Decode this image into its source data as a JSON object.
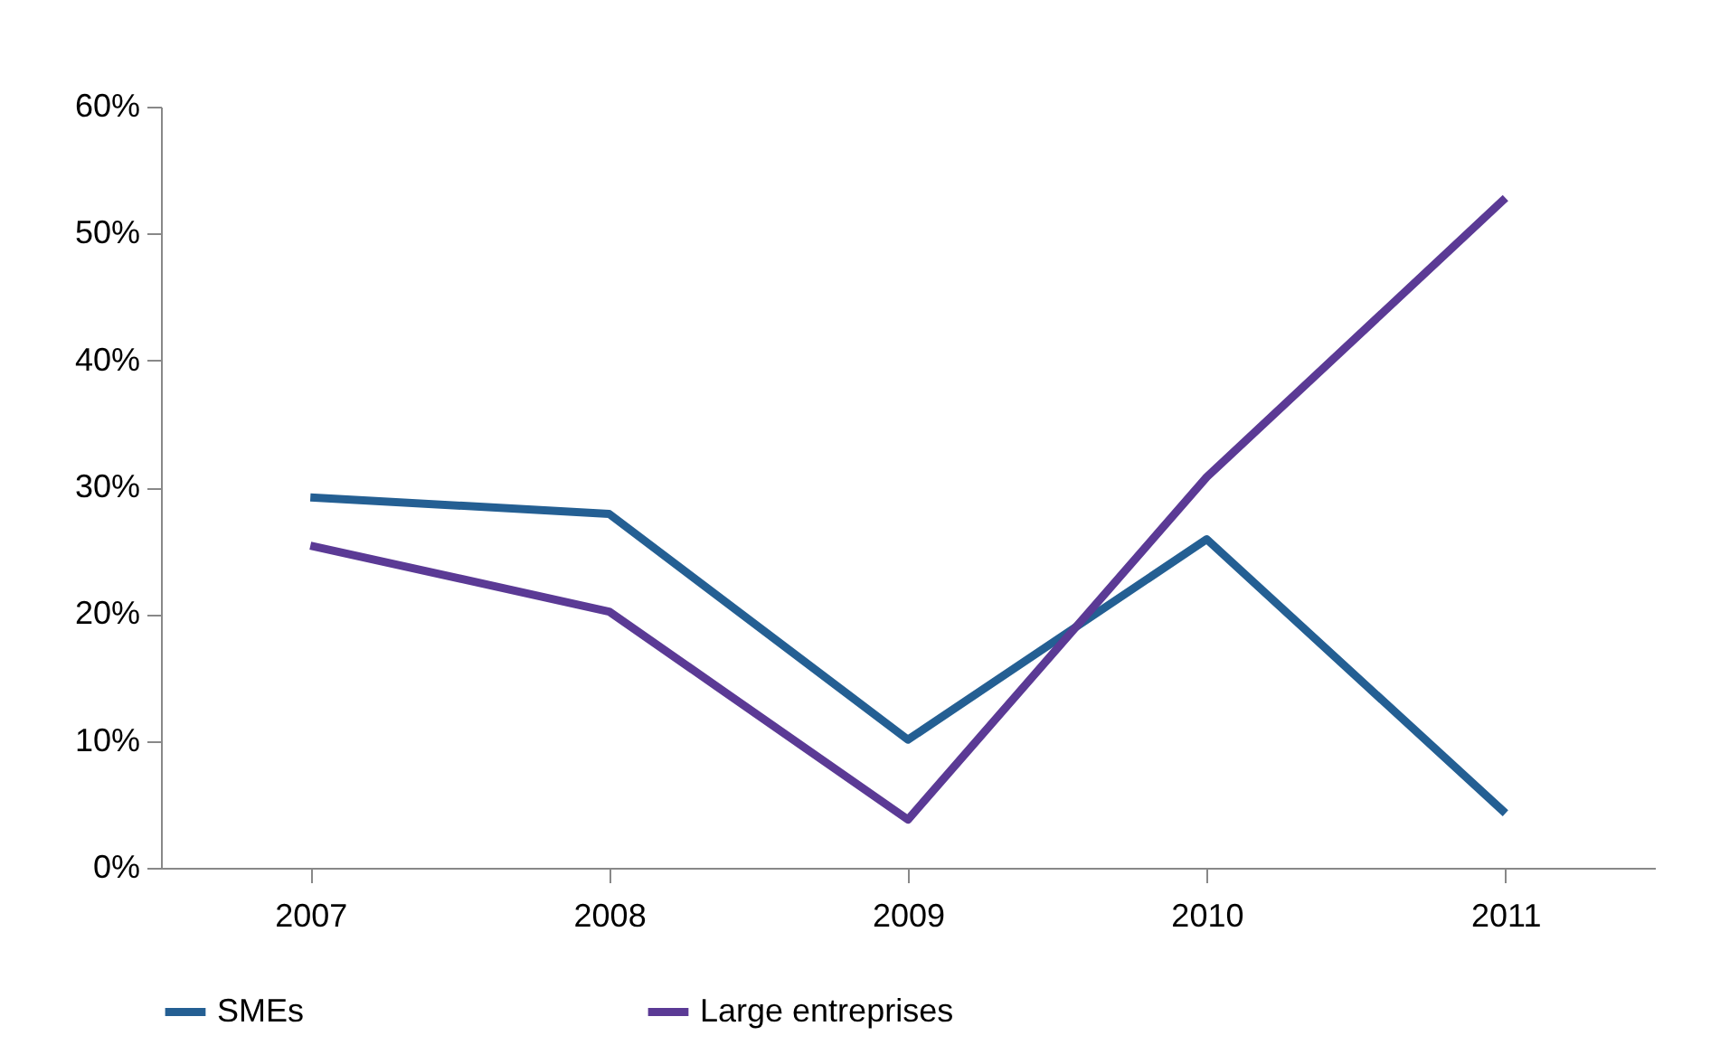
{
  "chart_data": {
    "type": "line",
    "categories": [
      "2007",
      "2008",
      "2009",
      "2010",
      "2011"
    ],
    "series": [
      {
        "name": "SMEs",
        "color": "#245f93",
        "values": [
          29.2,
          27.9,
          10.1,
          25.9,
          4.3
        ]
      },
      {
        "name": "Large entreprises",
        "color": "#5b3a95",
        "values": [
          25.4,
          20.2,
          3.8,
          30.8,
          52.8
        ]
      }
    ],
    "ylim": [
      0,
      60
    ],
    "yticks": [
      {
        "value": 0,
        "label": "0%"
      },
      {
        "value": 10,
        "label": "10%"
      },
      {
        "value": 20,
        "label": "20%"
      },
      {
        "value": 30,
        "label": "30%"
      },
      {
        "value": 40,
        "label": "40%"
      },
      {
        "value": 50,
        "label": "50%"
      },
      {
        "value": 60,
        "label": "60%"
      }
    ],
    "grid": false,
    "legend": "bottom",
    "marker": "none",
    "line_style": "solid"
  }
}
